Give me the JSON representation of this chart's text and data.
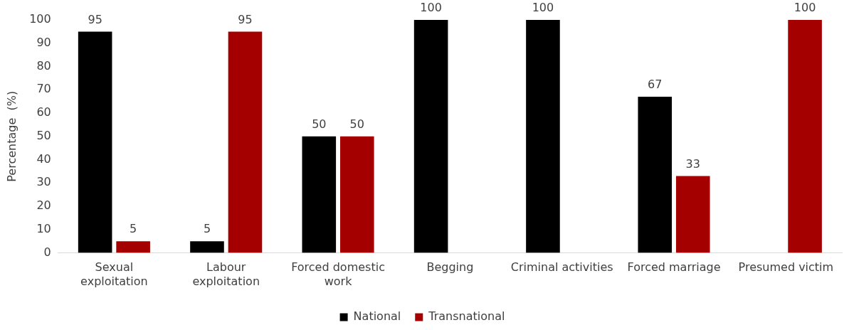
{
  "chart_data": {
    "type": "bar",
    "ylabel": "Percentage  (%)",
    "categories": [
      "Sexual exploitation",
      "Labour exploitation",
      "Forced domestic work",
      "Begging",
      "Criminal activities",
      "Forced marriage",
      "Presumed victim"
    ],
    "series": [
      {
        "name": "National",
        "color": "#000000",
        "values": [
          95,
          5,
          50,
          100,
          100,
          67,
          null
        ]
      },
      {
        "name": "Transnational",
        "color": "#a50000",
        "values": [
          5,
          95,
          50,
          null,
          null,
          33,
          100
        ]
      }
    ],
    "ylim": [
      0,
      100
    ],
    "yticks": [
      0,
      10,
      20,
      30,
      40,
      50,
      60,
      70,
      80,
      90,
      100
    ],
    "grid": false,
    "legend": "bottom",
    "data_labels": true
  }
}
